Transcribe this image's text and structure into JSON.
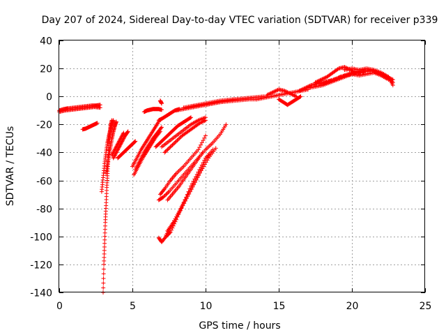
{
  "chart_data": {
    "type": "scatter",
    "title": "Day 207 of 2024, Sidereal Day-to-day VTEC variation (SDTVAR) for receiver p339",
    "xlabel": "GPS time / hours",
    "ylabel": "SDTVAR / TECUs",
    "xlim": [
      0,
      25
    ],
    "ylim": [
      -140,
      40
    ],
    "xticks": [
      0,
      5,
      10,
      15,
      20,
      25
    ],
    "yticks": [
      -140,
      -120,
      -100,
      -80,
      -60,
      -40,
      -20,
      0,
      20,
      40
    ],
    "xtick_labels": [
      "0",
      "5",
      "10",
      "15",
      "20",
      "25"
    ],
    "ytick_labels": [
      "-140",
      "-120",
      "-100",
      "-80",
      "-60",
      "-40",
      "-20",
      "0",
      "20",
      "40"
    ],
    "grid": true,
    "marker": "+",
    "color": "#ff0000",
    "series": [
      {
        "name": "s1",
        "x": [
          0.0,
          0.3,
          0.6,
          1.0,
          1.4,
          1.8,
          2.2,
          2.5,
          2.8
        ],
        "y": [
          -10,
          -9,
          -8.5,
          -8,
          -7.5,
          -7,
          -6.5,
          -6.5,
          -6
        ]
      },
      {
        "name": "s2",
        "x": [
          0.0,
          0.4,
          0.8,
          1.2,
          1.6,
          2.0,
          2.4,
          2.8
        ],
        "y": [
          -11,
          -10,
          -9.5,
          -9,
          -8.5,
          -8,
          -7.5,
          -8
        ]
      },
      {
        "name": "s3",
        "x": [
          1.6,
          1.8,
          2.0,
          2.2,
          2.4,
          2.6
        ],
        "y": [
          -23.5,
          -23,
          -22,
          -21,
          -20,
          -19
        ]
      },
      {
        "name": "s4",
        "x": [
          3.0,
          3.05,
          3.1,
          3.15,
          3.2,
          3.25,
          3.3,
          3.35,
          3.4,
          3.45,
          3.5,
          3.6
        ],
        "y": [
          -140,
          -120,
          -105,
          -90,
          -78,
          -65,
          -55,
          -45,
          -35,
          -27,
          -21,
          -17
        ]
      },
      {
        "name": "s5",
        "x": [
          2.9,
          3.0,
          3.1,
          3.2,
          3.3,
          3.4,
          3.5,
          3.6,
          3.7
        ],
        "y": [
          -68,
          -58,
          -48,
          -40,
          -33,
          -28,
          -24,
          -20,
          -17
        ]
      },
      {
        "name": "s6",
        "x": [
          3.2,
          3.3,
          3.4,
          3.5,
          3.6,
          3.7,
          3.8,
          3.9
        ],
        "y": [
          -55,
          -48,
          -42,
          -36,
          -30,
          -25,
          -21,
          -18
        ]
      },
      {
        "name": "s7",
        "x": [
          3.7,
          3.9,
          4.1,
          4.3,
          4.5,
          4.7
        ],
        "y": [
          -44,
          -40,
          -36,
          -32,
          -28,
          -25
        ]
      },
      {
        "name": "s8",
        "x": [
          3.6,
          3.8,
          4.0,
          4.2,
          4.4
        ],
        "y": [
          -42,
          -38,
          -34,
          -30,
          -26
        ]
      },
      {
        "name": "s9",
        "x": [
          4.0,
          4.2,
          4.4,
          4.6,
          4.8,
          5.0,
          5.2
        ],
        "y": [
          -44,
          -42,
          -40,
          -38,
          -36,
          -34,
          -32
        ]
      },
      {
        "name": "s10",
        "x": [
          5.0,
          5.3,
          5.6,
          5.9,
          6.2,
          6.5,
          6.8
        ],
        "y": [
          -50,
          -44,
          -38,
          -33,
          -28,
          -23,
          -18
        ]
      },
      {
        "name": "s11",
        "x": [
          5.1,
          5.4,
          5.7,
          6.0,
          6.3,
          6.6,
          6.9
        ],
        "y": [
          -56,
          -50,
          -44,
          -39,
          -34,
          -29,
          -25
        ]
      },
      {
        "name": "s12",
        "x": [
          5.2,
          5.5,
          5.8,
          6.1,
          6.4,
          6.7,
          7.0
        ],
        "y": [
          -52,
          -46,
          -40,
          -35,
          -30,
          -26,
          -22
        ]
      },
      {
        "name": "s13",
        "x": [
          5.8,
          6.0,
          6.2,
          6.4,
          6.6,
          6.8,
          7.0
        ],
        "y": [
          -11,
          -10,
          -9.5,
          -9,
          -9,
          -9,
          -9.5
        ]
      },
      {
        "name": "s14",
        "x": [
          6.9,
          7.0
        ],
        "y": [
          -3,
          -5
        ]
      },
      {
        "name": "s15",
        "x": [
          6.6,
          6.9,
          7.2,
          7.5,
          7.8,
          8.1,
          8.4,
          8.7,
          9.0
        ],
        "y": [
          -36,
          -33,
          -30,
          -27,
          -24,
          -21,
          -19,
          -17,
          -15
        ]
      },
      {
        "name": "s16",
        "x": [
          7.2,
          7.6,
          8.0,
          8.4,
          8.8,
          9.2,
          9.6,
          10.0
        ],
        "y": [
          -40,
          -36,
          -32,
          -28,
          -25,
          -22,
          -19,
          -17
        ]
      },
      {
        "name": "s17",
        "x": [
          7.0,
          7.5,
          8.0,
          8.5,
          9.0,
          9.5,
          10.0
        ],
        "y": [
          -36,
          -32,
          -28,
          -24,
          -20,
          -17,
          -15
        ]
      },
      {
        "name": "s18",
        "x": [
          6.8,
          7.0,
          7.3,
          7.6,
          7.9,
          8.2
        ],
        "y": [
          -17,
          -16,
          -14,
          -12,
          -10,
          -9
        ]
      },
      {
        "name": "s19",
        "x": [
          6.8,
          7.1,
          7.5,
          8.0,
          8.5,
          9.0,
          9.5,
          10.0,
          10.5,
          11.0,
          11.4
        ],
        "y": [
          -74,
          -72,
          -68,
          -62,
          -56,
          -50,
          -44,
          -38,
          -33,
          -27,
          -20
        ]
      },
      {
        "name": "s20",
        "x": [
          6.9,
          7.2,
          7.6,
          8.0,
          8.5,
          9.0,
          9.5,
          10.0
        ],
        "y": [
          -70,
          -66,
          -60,
          -55,
          -50,
          -44,
          -38,
          -28
        ]
      },
      {
        "name": "s21",
        "x": [
          7.4,
          7.8,
          8.2,
          8.6,
          9.0,
          9.4,
          9.8
        ],
        "y": [
          -74,
          -69,
          -64,
          -58,
          -52,
          -46,
          -40
        ]
      },
      {
        "name": "s22",
        "x": [
          6.8,
          7.0,
          7.3,
          7.6,
          8.0,
          8.5,
          9.0,
          9.5,
          10.0,
          10.5
        ],
        "y": [
          -101,
          -104,
          -100,
          -97,
          -88,
          -76,
          -64,
          -54,
          -44,
          -38
        ]
      },
      {
        "name": "s23",
        "x": [
          7.4,
          7.8,
          8.2,
          8.7,
          9.2,
          9.7,
          10.2
        ],
        "y": [
          -96,
          -90,
          -82,
          -72,
          -62,
          -52,
          -42
        ]
      },
      {
        "name": "s24",
        "x": [
          7.3,
          7.7,
          8.2,
          8.7,
          9.2,
          9.7,
          10.2,
          10.7
        ],
        "y": [
          -99,
          -92,
          -83,
          -73,
          -63,
          -53,
          -44,
          -37
        ]
      },
      {
        "name": "s25",
        "x": [
          8.0,
          8.5,
          9.0,
          9.5,
          10.0,
          10.5,
          11.0,
          11.5,
          12.0,
          12.5,
          13.0,
          13.5
        ],
        "y": [
          -10,
          -9,
          -8,
          -7,
          -6,
          -5,
          -4,
          -3.5,
          -3,
          -2.5,
          -2,
          -2
        ]
      },
      {
        "name": "s26",
        "x": [
          8.5,
          9.0,
          9.5,
          10.0,
          10.5,
          11.0,
          11.5,
          12.0
        ],
        "y": [
          -8,
          -7,
          -6.5,
          -6,
          -5,
          -4,
          -3,
          -2
        ]
      },
      {
        "name": "s27",
        "x": [
          9.0,
          9.5,
          10.0,
          10.5,
          11.0,
          11.5,
          12.0,
          12.5,
          13.0,
          13.5,
          14.0
        ],
        "y": [
          -7,
          -6,
          -5,
          -4,
          -3,
          -2.5,
          -2,
          -1.5,
          -1,
          -0.5,
          0
        ]
      },
      {
        "name": "s28",
        "x": [
          13.5,
          14.0,
          14.5,
          15.0,
          15.5,
          16.0,
          16.5,
          17.0
        ],
        "y": [
          -2,
          -1,
          0,
          1,
          2,
          3,
          4,
          5
        ]
      },
      {
        "name": "s29",
        "x": [
          14.2,
          14.6,
          15.0,
          15.4,
          15.8,
          16.2
        ],
        "y": [
          1,
          3,
          5,
          4,
          2,
          0
        ]
      },
      {
        "name": "s30",
        "x": [
          15.0,
          15.3,
          15.6,
          15.9,
          16.2,
          16.5
        ],
        "y": [
          -2,
          -4,
          -6,
          -4,
          -2,
          0
        ]
      },
      {
        "name": "s31",
        "x": [
          16.4,
          16.8,
          17.2,
          17.6,
          18.0,
          18.4,
          18.8,
          19.2,
          19.6,
          20.0,
          20.4,
          20.8
        ],
        "y": [
          4,
          6,
          8,
          9,
          10,
          11,
          12,
          14,
          15,
          16,
          17,
          17
        ]
      },
      {
        "name": "s32",
        "x": [
          17.5,
          17.9,
          18.3,
          18.7,
          19.1,
          19.5,
          19.9,
          20.3
        ],
        "y": [
          10,
          12,
          14,
          17,
          20,
          21,
          19,
          17
        ]
      },
      {
        "name": "s33",
        "x": [
          17.0,
          17.5,
          18.0,
          18.5,
          19.0,
          19.5,
          20.0,
          20.5,
          21.0,
          21.5,
          22.0,
          22.4,
          22.8
        ],
        "y": [
          6,
          7,
          8,
          10,
          12,
          14,
          16,
          17,
          18,
          18,
          16,
          14,
          12
        ]
      },
      {
        "name": "s34",
        "x": [
          18.0,
          18.5,
          19.0,
          19.5,
          20.0,
          20.5,
          21.0,
          21.5,
          22.0,
          22.5,
          22.8
        ],
        "y": [
          9,
          11,
          13,
          15,
          17,
          18,
          19,
          18,
          16,
          13,
          10
        ]
      },
      {
        "name": "s35",
        "x": [
          19.5,
          20.0,
          20.5,
          21.0,
          21.5,
          22.0,
          22.5,
          22.8
        ],
        "y": [
          19,
          20,
          19,
          20,
          19,
          17,
          14,
          8
        ]
      },
      {
        "name": "s36",
        "x": [
          20.0,
          20.5,
          21.0,
          21.5,
          22.0,
          22.5
        ],
        "y": [
          16,
          15,
          16,
          17,
          15,
          12
        ]
      }
    ]
  }
}
